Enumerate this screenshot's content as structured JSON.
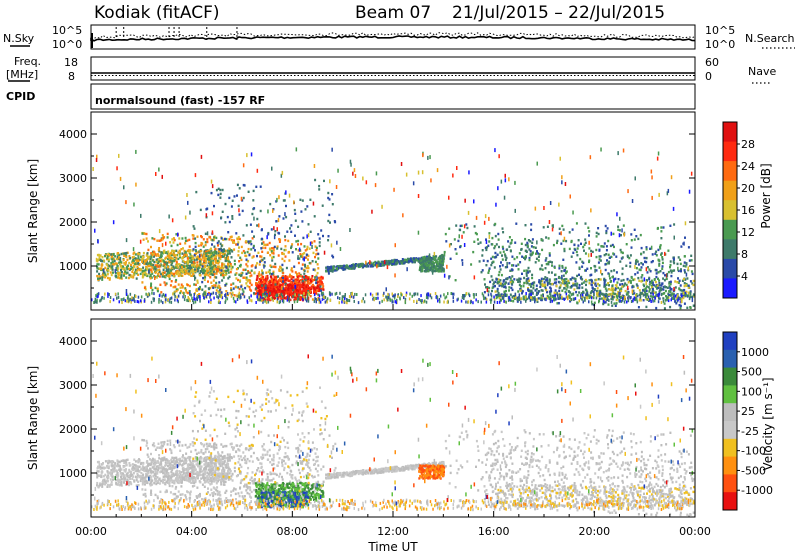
{
  "header": {
    "title": "Kodiak (fitACF)",
    "beam": "Beam 07",
    "dates": "21/Jul/2015 – 22/Jul/2015"
  },
  "aux": {
    "nsky_label": "N.Sky",
    "nsearch_label": "N.Search",
    "freq_label_line1": "Freq.",
    "freq_label_line2": "[MHz]",
    "nave_label": "Nave",
    "cpid_label": "CPID",
    "cpid_text": "normalsound (fast) -157 RF",
    "nsky_ticks": [
      "10^5",
      "10^0"
    ],
    "nsearch_ticks": [
      "10^5",
      "10^0"
    ],
    "freq_ticks": [
      "18",
      "8"
    ],
    "nave_ticks": [
      "60",
      "0"
    ]
  },
  "colors": {
    "power_scale": [
      "#1a1aff",
      "#2a4aa8",
      "#3e7a6a",
      "#4a9a50",
      "#d8c030",
      "#f0a018",
      "#ff6a10",
      "#ff2a10",
      "#e01010"
    ],
    "velocity_scale": [
      "#2040c0",
      "#2a60b0",
      "#3a8a3a",
      "#60c040",
      "#bdbdbd",
      "#c8c8c8",
      "#f0c020",
      "#ff9010",
      "#ff5010",
      "#e81010"
    ]
  },
  "chart_data": [
    {
      "type": "heatmap",
      "name": "power",
      "xlabel": "",
      "ylabel": "Slant Range [km]",
      "xlim": [
        "00:00",
        "00:00"
      ],
      "ylim": [
        0,
        4500
      ],
      "y_ticks": [
        1000,
        2000,
        3000,
        4000
      ],
      "colorbar_label": "Power [dB]",
      "colorbar_ticks": [
        4,
        8,
        12,
        16,
        20,
        24,
        28
      ]
    },
    {
      "type": "heatmap",
      "name": "velocity",
      "xlabel": "Time UT",
      "ylabel": "Slant Range [km]",
      "x_ticks": [
        "00:00",
        "04:00",
        "08:00",
        "12:00",
        "16:00",
        "20:00",
        "00:00"
      ],
      "ylim": [
        0,
        4500
      ],
      "y_ticks": [
        1000,
        2000,
        3000,
        4000
      ],
      "colorbar_label": "Velocity [m s⁻¹]",
      "colorbar_ticks": [
        1000,
        500,
        100,
        25,
        -25,
        -100,
        -500,
        -1000
      ]
    }
  ]
}
